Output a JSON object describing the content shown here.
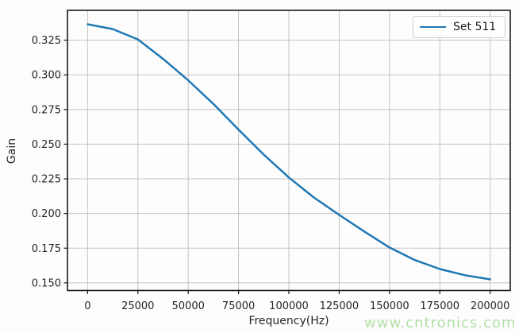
{
  "figure": {
    "background": "#fdfdfd"
  },
  "watermark": {
    "text": "www.cntronics.com",
    "color": "#b3e0a7"
  },
  "chart_data": {
    "type": "line",
    "title": "",
    "xlabel": "Frequency(Hz)",
    "ylabel": "Gain",
    "grid": true,
    "legend_position": "upper right",
    "xlim": [
      -10000,
      210000
    ],
    "ylim": [
      0.1445,
      0.3465
    ],
    "xticks": [
      0,
      25000,
      50000,
      75000,
      100000,
      125000,
      150000,
      175000,
      200000
    ],
    "xticklabels": [
      "0",
      "25000",
      "50000",
      "75000",
      "100000",
      "125000",
      "150000",
      "175000",
      "200000"
    ],
    "yticks": [
      0.15,
      0.175,
      0.2,
      0.225,
      0.25,
      0.275,
      0.3,
      0.325
    ],
    "yticklabels": [
      "0.150",
      "0.175",
      "0.200",
      "0.225",
      "0.250",
      "0.275",
      "0.300",
      "0.325"
    ],
    "series": [
      {
        "name": "Set 511",
        "color": "#1f77b4",
        "x": [
          0,
          12500,
          25000,
          37500,
          50000,
          62500,
          75000,
          87500,
          100000,
          112500,
          125000,
          137500,
          150000,
          162500,
          175000,
          187500,
          200000
        ],
        "y": [
          0.3365,
          0.333,
          0.3255,
          0.3115,
          0.296,
          0.279,
          0.2605,
          0.2425,
          0.226,
          0.2115,
          0.199,
          0.187,
          0.1755,
          0.1665,
          0.16,
          0.1555,
          0.1525
        ]
      }
    ]
  },
  "styles": {
    "grid_color": "#c4c4c4",
    "spine_color": "#1a1a1a",
    "tick_color": "#1a1a1a",
    "text_color": "#262626",
    "legend_border": "#cccccc",
    "tick_font_px": 13,
    "line_width": 2.5
  }
}
